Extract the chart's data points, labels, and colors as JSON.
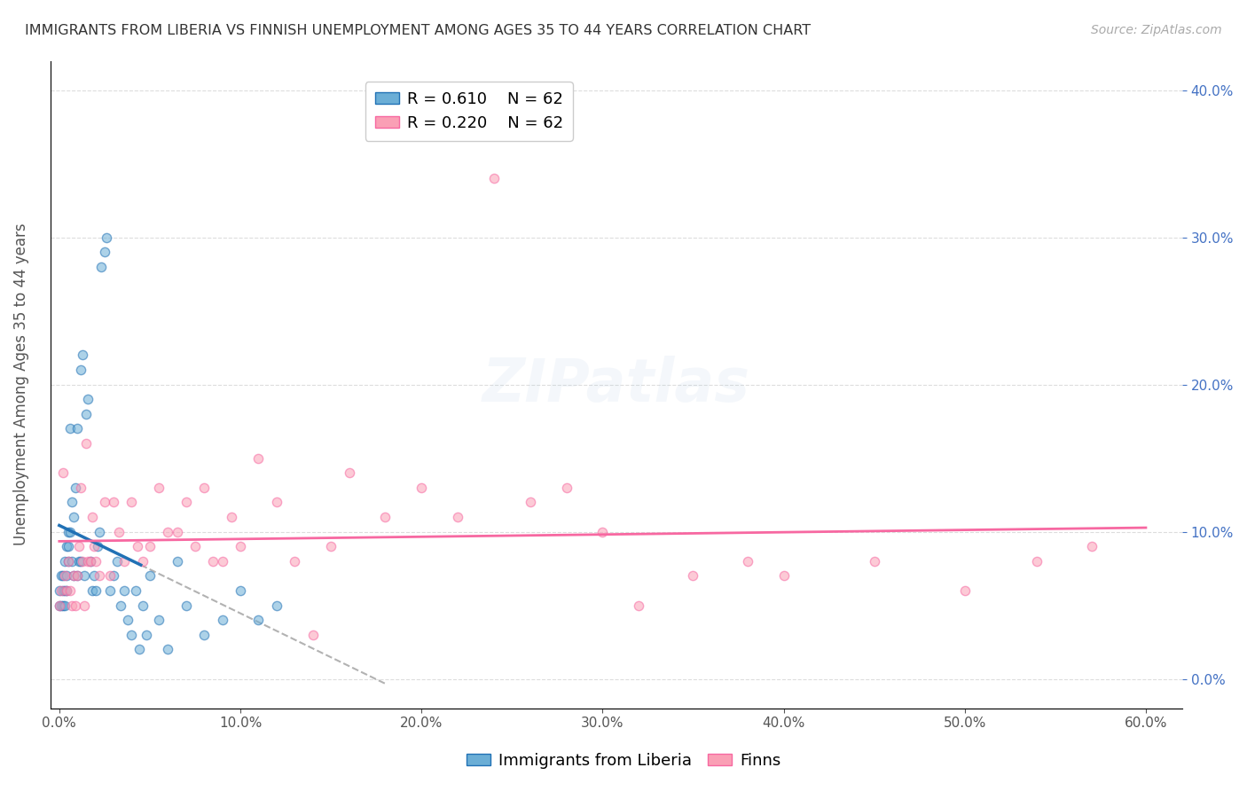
{
  "title": "IMMIGRANTS FROM LIBERIA VS FINNISH UNEMPLOYMENT AMONG AGES 35 TO 44 YEARS CORRELATION CHART",
  "source": "Source: ZipAtlas.com",
  "ylabel": "Unemployment Among Ages 35 to 44 years",
  "xlabel_ticks": [
    "0.0%",
    "10.0%",
    "20.0%",
    "30.0%",
    "40.0%",
    "50.0%",
    "60.0%"
  ],
  "xlabel_vals": [
    0.0,
    0.1,
    0.2,
    0.3,
    0.4,
    0.5,
    0.6
  ],
  "ylabel_ticks": [
    "0.0%",
    "10.0%",
    "20.0%",
    "30.0%",
    "40.0%"
  ],
  "ylabel_vals": [
    0.0,
    0.1,
    0.2,
    0.3,
    0.4
  ],
  "xlim": [
    -0.005,
    0.62
  ],
  "ylim": [
    -0.02,
    0.42
  ],
  "blue_color": "#6baed6",
  "pink_color": "#fa9fb5",
  "blue_line_color": "#2171b5",
  "pink_line_color": "#f768a1",
  "legend_R_blue": "R = 0.610",
  "legend_N_blue": "N = 62",
  "legend_R_pink": "R = 0.220",
  "legend_N_pink": "N = 62",
  "legend_label_blue": "Immigrants from Liberia",
  "legend_label_pink": "Finns",
  "watermark": "ZIPatlas",
  "blue_scatter_x": [
    0.0,
    0.0,
    0.001,
    0.001,
    0.002,
    0.002,
    0.002,
    0.003,
    0.003,
    0.003,
    0.004,
    0.004,
    0.004,
    0.005,
    0.005,
    0.005,
    0.006,
    0.006,
    0.007,
    0.007,
    0.008,
    0.008,
    0.009,
    0.01,
    0.01,
    0.011,
    0.012,
    0.012,
    0.013,
    0.014,
    0.015,
    0.016,
    0.017,
    0.018,
    0.019,
    0.02,
    0.021,
    0.022,
    0.023,
    0.025,
    0.026,
    0.028,
    0.03,
    0.032,
    0.034,
    0.036,
    0.038,
    0.04,
    0.042,
    0.044,
    0.046,
    0.048,
    0.05,
    0.055,
    0.06,
    0.065,
    0.07,
    0.08,
    0.09,
    0.1,
    0.11,
    0.12
  ],
  "blue_scatter_y": [
    0.05,
    0.06,
    0.07,
    0.05,
    0.07,
    0.06,
    0.05,
    0.08,
    0.06,
    0.05,
    0.09,
    0.07,
    0.06,
    0.1,
    0.09,
    0.08,
    0.17,
    0.1,
    0.12,
    0.08,
    0.11,
    0.07,
    0.13,
    0.17,
    0.07,
    0.08,
    0.21,
    0.08,
    0.22,
    0.07,
    0.18,
    0.19,
    0.08,
    0.06,
    0.07,
    0.06,
    0.09,
    0.1,
    0.28,
    0.29,
    0.3,
    0.06,
    0.07,
    0.08,
    0.05,
    0.06,
    0.04,
    0.03,
    0.06,
    0.02,
    0.05,
    0.03,
    0.07,
    0.04,
    0.02,
    0.08,
    0.05,
    0.03,
    0.04,
    0.06,
    0.04,
    0.05
  ],
  "pink_scatter_x": [
    0.0,
    0.001,
    0.002,
    0.003,
    0.004,
    0.005,
    0.006,
    0.007,
    0.008,
    0.009,
    0.01,
    0.011,
    0.012,
    0.013,
    0.014,
    0.015,
    0.016,
    0.017,
    0.018,
    0.019,
    0.02,
    0.022,
    0.025,
    0.028,
    0.03,
    0.033,
    0.036,
    0.04,
    0.043,
    0.046,
    0.05,
    0.055,
    0.06,
    0.065,
    0.07,
    0.075,
    0.08,
    0.085,
    0.09,
    0.095,
    0.1,
    0.11,
    0.12,
    0.13,
    0.14,
    0.15,
    0.16,
    0.18,
    0.2,
    0.22,
    0.24,
    0.26,
    0.28,
    0.3,
    0.32,
    0.35,
    0.38,
    0.4,
    0.45,
    0.5,
    0.54,
    0.57
  ],
  "pink_scatter_y": [
    0.05,
    0.06,
    0.14,
    0.07,
    0.06,
    0.08,
    0.06,
    0.05,
    0.07,
    0.05,
    0.07,
    0.09,
    0.13,
    0.08,
    0.05,
    0.16,
    0.08,
    0.08,
    0.11,
    0.09,
    0.08,
    0.07,
    0.12,
    0.07,
    0.12,
    0.1,
    0.08,
    0.12,
    0.09,
    0.08,
    0.09,
    0.13,
    0.1,
    0.1,
    0.12,
    0.09,
    0.13,
    0.08,
    0.08,
    0.11,
    0.09,
    0.15,
    0.12,
    0.08,
    0.03,
    0.09,
    0.14,
    0.11,
    0.13,
    0.11,
    0.34,
    0.12,
    0.13,
    0.1,
    0.05,
    0.07,
    0.08,
    0.07,
    0.08,
    0.06,
    0.08,
    0.09
  ],
  "title_fontsize": 11.5,
  "source_fontsize": 10,
  "axis_label_fontsize": 12,
  "tick_fontsize": 11,
  "legend_fontsize": 13,
  "watermark_fontsize": 48,
  "watermark_alpha": 0.12,
  "scatter_size": 55,
  "scatter_alpha": 0.55,
  "scatter_lw": 1.0
}
